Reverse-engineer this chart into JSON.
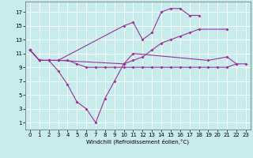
{
  "xlabel": "Windchill (Refroidissement éolien,°C)",
  "background_color": "#c8ecec",
  "grid_color": "#ffffff",
  "line_color": "#993399",
  "xlim": [
    -0.5,
    23.5
  ],
  "ylim": [
    0.0,
    18.5
  ],
  "yticks": [
    1,
    3,
    5,
    7,
    9,
    11,
    13,
    15,
    17
  ],
  "xticks": [
    0,
    1,
    2,
    3,
    4,
    5,
    6,
    7,
    8,
    9,
    10,
    11,
    12,
    13,
    14,
    15,
    16,
    17,
    18,
    19,
    20,
    21,
    22,
    23
  ],
  "line1_x": [
    0,
    1,
    2,
    3,
    4,
    5,
    6,
    7,
    8,
    9,
    10,
    11,
    19,
    21,
    22
  ],
  "line1_y": [
    11.5,
    10.0,
    10.0,
    8.5,
    6.5,
    4.0,
    3.0,
    1.0,
    4.5,
    7.0,
    9.5,
    11.0,
    10.0,
    10.5,
    9.5
  ],
  "line2_x": [
    0,
    1,
    2,
    3,
    4,
    5,
    6,
    7,
    8,
    9,
    10,
    11,
    12,
    13,
    14,
    15,
    16,
    17,
    18,
    19,
    20,
    21,
    22,
    23
  ],
  "line2_y": [
    11.5,
    10.0,
    10.0,
    10.0,
    10.0,
    9.5,
    9.0,
    9.0,
    9.0,
    9.0,
    9.0,
    9.0,
    9.0,
    9.0,
    9.0,
    9.0,
    9.0,
    9.0,
    9.0,
    9.0,
    9.0,
    9.0,
    9.5,
    9.5
  ],
  "line3_x": [
    0,
    1,
    2,
    3,
    10,
    11,
    12,
    13,
    14,
    15,
    16,
    17,
    18,
    21
  ],
  "line3_y": [
    11.5,
    10.0,
    10.0,
    10.0,
    9.5,
    10.0,
    10.5,
    11.5,
    12.5,
    13.0,
    13.5,
    14.0,
    14.5,
    14.5
  ],
  "line4_x": [
    0,
    1,
    2,
    3,
    10,
    11,
    12,
    13,
    14,
    15,
    16,
    17,
    18
  ],
  "line4_y": [
    11.5,
    10.0,
    10.0,
    10.0,
    15.0,
    15.5,
    13.0,
    14.0,
    17.0,
    17.5,
    17.5,
    16.5,
    16.5
  ],
  "marker_size": 2.0,
  "line_width": 0.8,
  "tick_labelsize": 5,
  "xlabel_fontsize": 5
}
